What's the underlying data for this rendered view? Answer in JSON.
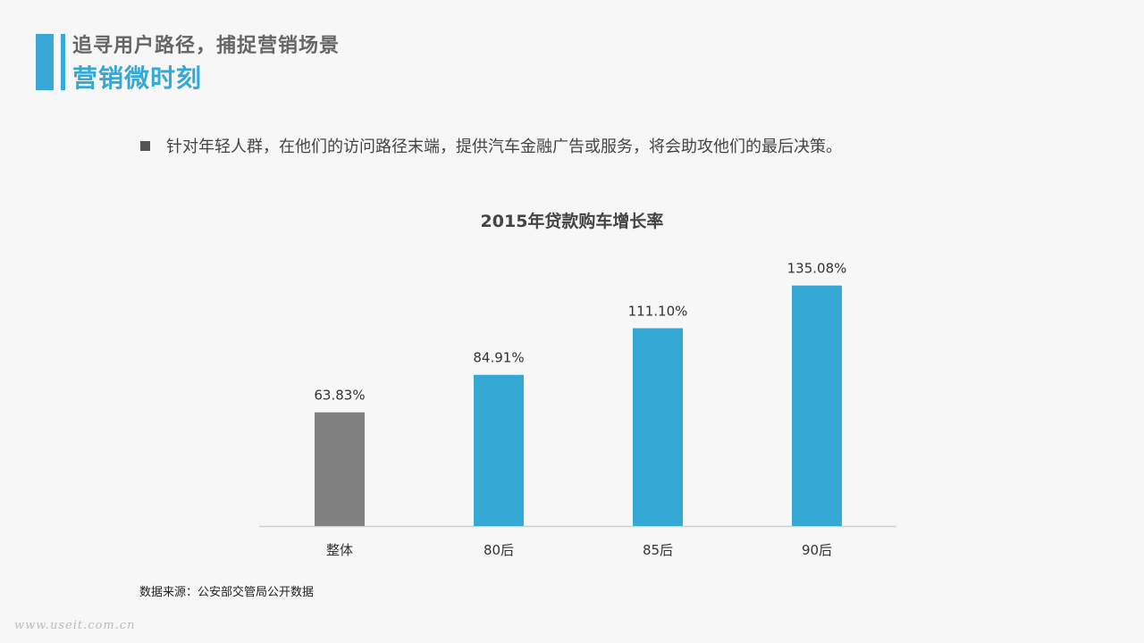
{
  "header": {
    "subtitle": "追寻用户路径，捕捉营销场景",
    "title": "营销微时刻"
  },
  "bullet": {
    "text": "针对年轻人群，在他们的访问路径末端，提供汽车金融广告或服务，将会助攻他们的最后决策。"
  },
  "chart_data": {
    "type": "bar",
    "title": "2015年贷款购车增长率",
    "categories": [
      "整体",
      "80后",
      "85后",
      "90后"
    ],
    "values": [
      63.83,
      84.91,
      111.1,
      135.08
    ],
    "value_labels": [
      "63.83%",
      "84.91%",
      "111.10%",
      "135.08%"
    ],
    "bar_colors": [
      "#808080",
      "#35a9d6",
      "#35a9d6",
      "#35a9d6"
    ],
    "ylim": [
      0,
      160
    ],
    "grid": false
  },
  "source": "数据来源：公安部交管局公开数据",
  "watermark": "www.useit.com.cn",
  "colors": {
    "accent": "#35a9d6",
    "neutral": "#808080"
  }
}
